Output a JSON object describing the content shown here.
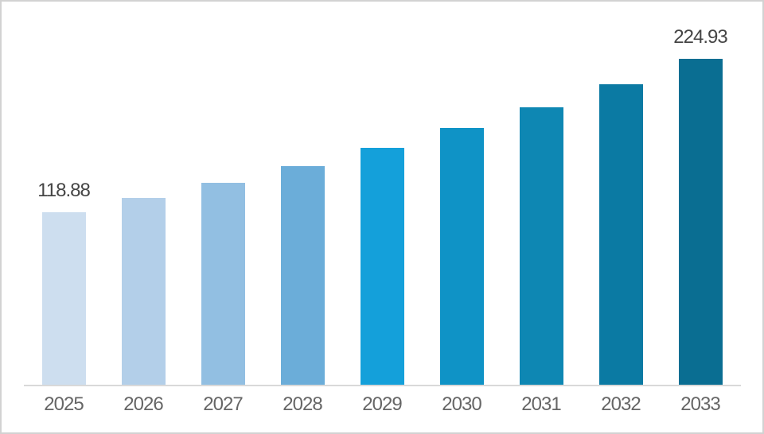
{
  "chart_data": {
    "type": "bar",
    "categories": [
      "2025",
      "2026",
      "2027",
      "2028",
      "2029",
      "2030",
      "2031",
      "2032",
      "2033"
    ],
    "values": [
      118.88,
      128.74,
      139.42,
      150.98,
      163.51,
      177.07,
      191.76,
      207.67,
      224.93
    ],
    "value_labels": [
      "118.88",
      null,
      null,
      null,
      null,
      null,
      null,
      null,
      "224.93"
    ],
    "bar_colors": [
      "#cddeef",
      "#b3cfe9",
      "#92bfe2",
      "#6badd9",
      "#14a0da",
      "#0f93c6",
      "#0e87b3",
      "#0b7aa3",
      "#0a6e92"
    ],
    "title": "",
    "xlabel": "",
    "ylabel": "",
    "grid": false,
    "legend": false,
    "y_axis_visible": false,
    "x_axis_line_color": "#d9d9d9",
    "value_label_color": "#454545",
    "tick_label_color": "#666666",
    "background_color": "#ffffff",
    "frame_border_color": "#d2d2d2"
  }
}
